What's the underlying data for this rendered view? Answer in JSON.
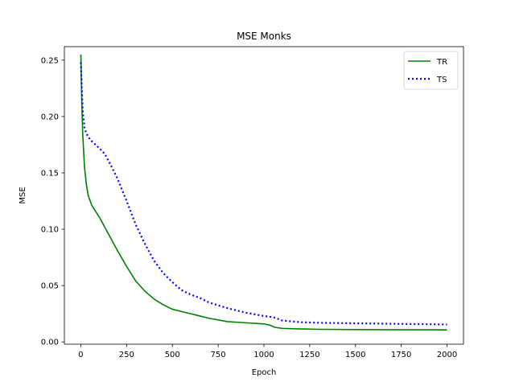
{
  "chart_data": {
    "type": "line",
    "title": "MSE Monks",
    "xlabel": "Epoch",
    "ylabel": "MSE",
    "xlim": [
      -90,
      2090
    ],
    "ylim": [
      -0.002,
      0.262
    ],
    "xticks": [
      0,
      250,
      500,
      750,
      1000,
      1250,
      1500,
      1750,
      2000
    ],
    "yticks": [
      0.0,
      0.05,
      0.1,
      0.15,
      0.2,
      0.25
    ],
    "ytick_labels": [
      "0.00",
      "0.05",
      "0.10",
      "0.15",
      "0.20",
      "0.25"
    ],
    "grid": false,
    "legend_position": "top-right",
    "series": [
      {
        "name": "TR",
        "color": "#008000",
        "style": "solid",
        "x": [
          0,
          5,
          10,
          20,
          30,
          40,
          60,
          80,
          100,
          150,
          200,
          250,
          300,
          350,
          400,
          450,
          500,
          550,
          600,
          650,
          700,
          800,
          900,
          1000,
          1030,
          1060,
          1100,
          1200,
          1300,
          1500,
          1750,
          2000
        ],
        "y": [
          0.255,
          0.215,
          0.185,
          0.155,
          0.14,
          0.13,
          0.121,
          0.116,
          0.111,
          0.096,
          0.081,
          0.067,
          0.054,
          0.045,
          0.038,
          0.033,
          0.029,
          0.027,
          0.025,
          0.023,
          0.021,
          0.018,
          0.017,
          0.016,
          0.015,
          0.013,
          0.012,
          0.0115,
          0.0112,
          0.011,
          0.0108,
          0.0107
        ]
      },
      {
        "name": "TS",
        "color": "#0000ff",
        "style": "dotted",
        "x": [
          0,
          5,
          10,
          20,
          30,
          40,
          60,
          80,
          100,
          130,
          160,
          200,
          250,
          300,
          350,
          400,
          450,
          500,
          550,
          600,
          650,
          700,
          800,
          900,
          1000,
          1050,
          1100,
          1200,
          1300,
          1500,
          1750,
          2000
        ],
        "y": [
          0.248,
          0.225,
          0.205,
          0.19,
          0.185,
          0.182,
          0.178,
          0.175,
          0.172,
          0.167,
          0.158,
          0.145,
          0.125,
          0.104,
          0.087,
          0.072,
          0.061,
          0.053,
          0.046,
          0.042,
          0.039,
          0.035,
          0.03,
          0.026,
          0.023,
          0.022,
          0.019,
          0.0175,
          0.017,
          0.0165,
          0.016,
          0.0155
        ]
      }
    ]
  }
}
